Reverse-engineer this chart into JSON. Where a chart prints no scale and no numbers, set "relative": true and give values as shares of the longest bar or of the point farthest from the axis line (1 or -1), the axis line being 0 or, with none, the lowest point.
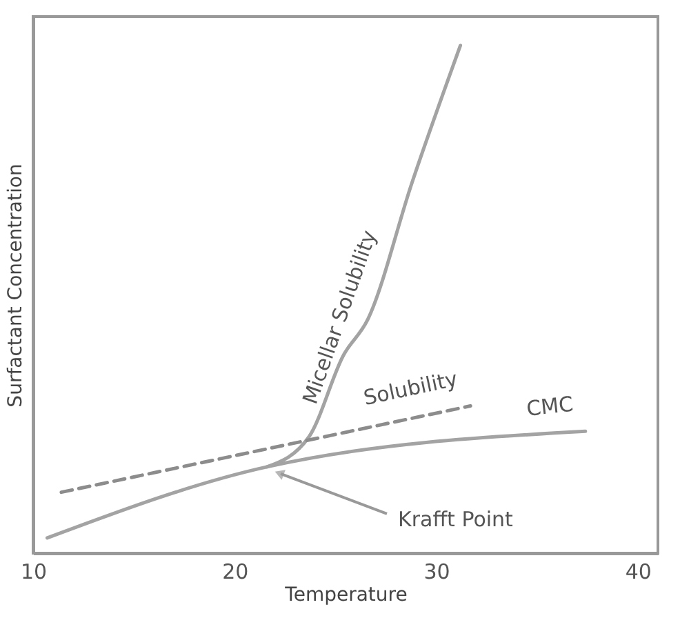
{
  "chart_data": {
    "type": "line",
    "relative": true,
    "xlabel": "Temperature",
    "ylabel": "Surfactant Concentration",
    "xlim": [
      10,
      41
    ],
    "xticks": [
      10,
      20,
      30,
      40
    ],
    "grid": false,
    "series": [
      {
        "name": "CMC",
        "color": "#a3a3a3",
        "x": [
          10.7,
          21.6,
          37.4
        ],
        "values": [
          0.03,
          0.17,
          0.24
        ]
      },
      {
        "name": "Micellar Solubility",
        "color": "#a3a3a3",
        "x": [
          21.6,
          23.7,
          25.4,
          26.6,
          28.8,
          31.2
        ],
        "values": [
          0.17,
          0.23,
          0.39,
          0.46,
          0.73,
          1.0
        ]
      },
      {
        "name": "Solubility",
        "color": "#8c8c8c",
        "line_style": "dashed",
        "x": [
          11.4,
          31.7
        ],
        "values": [
          0.12,
          0.29
        ]
      }
    ],
    "annotations": [
      "Krafft Point"
    ]
  }
}
